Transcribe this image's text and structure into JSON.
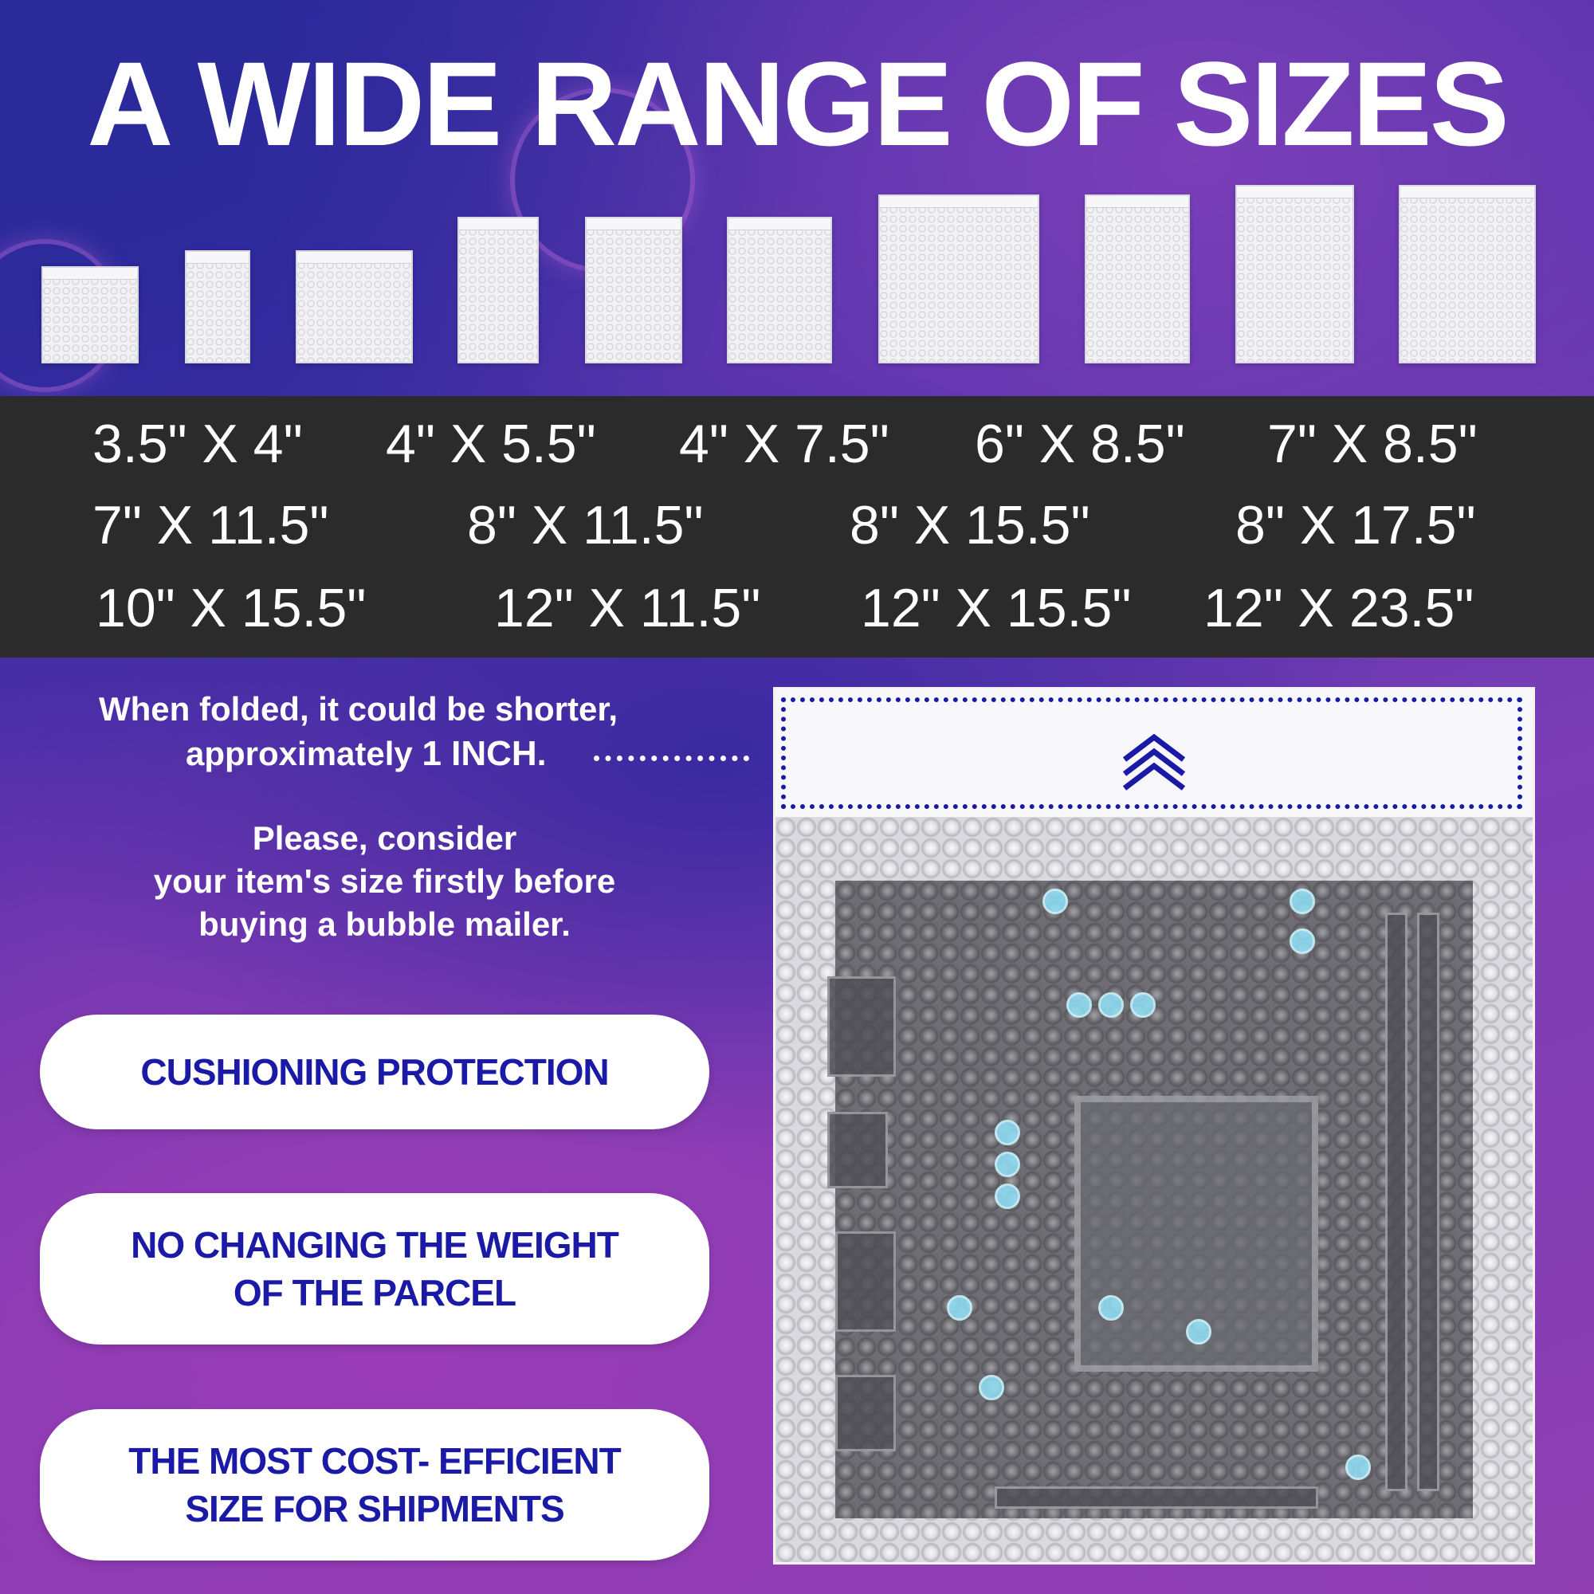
{
  "headline": "A WIDE RANGE OF SIZES",
  "sizes": {
    "row1": [
      "3.5\" X 4\"",
      "4\" X 5.5\"",
      "4\" X 7.5\"",
      "6\" X 8.5\"",
      "7\" X 8.5\""
    ],
    "row2": [
      "7\" X 11.5\"",
      "8\" X 11.5\"",
      "8\" X 15.5\"",
      "8\" X 17.5\""
    ],
    "row3": [
      "10\" X 15.5\"",
      "12\" X 11.5\"",
      "12\" X 15.5\"",
      "12\" X 23.5\""
    ]
  },
  "fold_note": {
    "line1": "When folded, it could be shorter,",
    "line2_prefix": "approximately ",
    "line2_bold": "1 INCH",
    "line2_suffix": "."
  },
  "consider_note": {
    "line1": "Please, consider",
    "line2": "your item's size firstly before",
    "line3": "buying a bubble mailer."
  },
  "features": [
    {
      "line1": "CUSHIONING PROTECTION",
      "line2": ""
    },
    {
      "line1": "NO CHANGING THE WEIGHT",
      "line2": "OF THE PARCEL"
    },
    {
      "line1": "THE MOST COST- EFFICIENT",
      "line2": "SIZE FOR SHIPMENTS"
    }
  ],
  "colors": {
    "accent": "#1a1aa6",
    "band": "#2b2b2b",
    "pill": "#ffffff"
  },
  "icons": {
    "fold_arrow": "chevron-up-icon"
  }
}
